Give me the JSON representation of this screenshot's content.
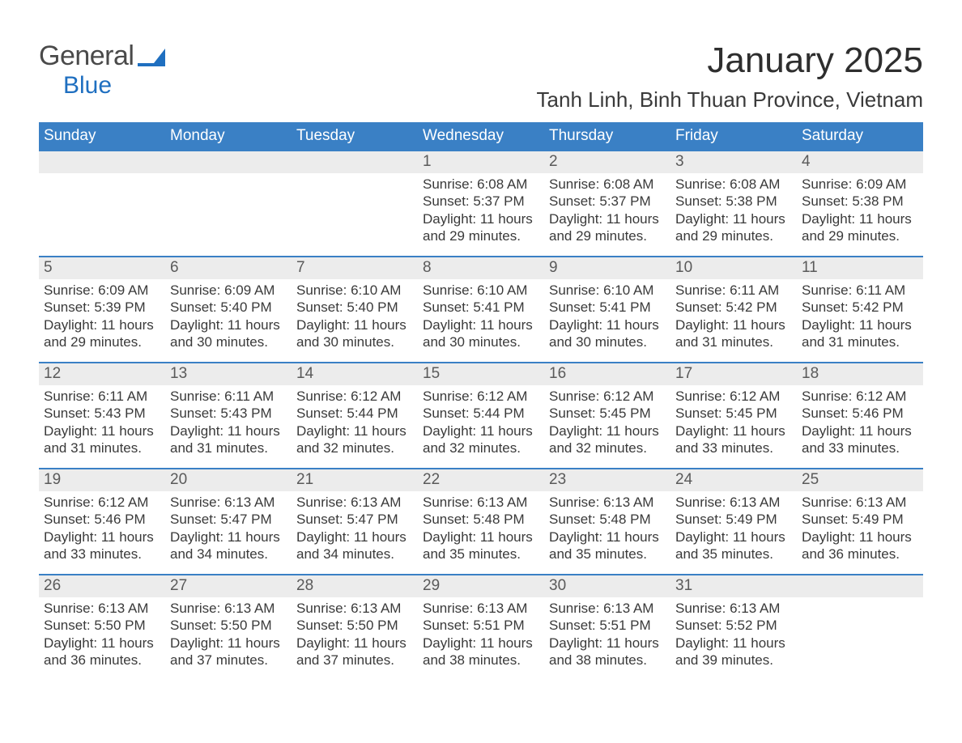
{
  "logo": {
    "text_general": "General",
    "text_blue": "Blue",
    "accent_color": "#1f6fc0"
  },
  "title": "January 2025",
  "location": "Tanh Linh, Binh Thuan Province, Vietnam",
  "colors": {
    "header_bg": "#3a80c5",
    "header_text": "#ffffff",
    "daynum_bg": "#ececec",
    "week_border": "#3a80c5",
    "body_text": "#3a3a3a"
  },
  "calendar": {
    "type": "table",
    "weekdays": [
      "Sunday",
      "Monday",
      "Tuesday",
      "Wednesday",
      "Thursday",
      "Friday",
      "Saturday"
    ],
    "start_weekday_index": 3,
    "days": [
      {
        "n": 1,
        "sunrise": "6:08 AM",
        "sunset": "5:37 PM",
        "daylight": "11 hours and 29 minutes."
      },
      {
        "n": 2,
        "sunrise": "6:08 AM",
        "sunset": "5:37 PM",
        "daylight": "11 hours and 29 minutes."
      },
      {
        "n": 3,
        "sunrise": "6:08 AM",
        "sunset": "5:38 PM",
        "daylight": "11 hours and 29 minutes."
      },
      {
        "n": 4,
        "sunrise": "6:09 AM",
        "sunset": "5:38 PM",
        "daylight": "11 hours and 29 minutes."
      },
      {
        "n": 5,
        "sunrise": "6:09 AM",
        "sunset": "5:39 PM",
        "daylight": "11 hours and 29 minutes."
      },
      {
        "n": 6,
        "sunrise": "6:09 AM",
        "sunset": "5:40 PM",
        "daylight": "11 hours and 30 minutes."
      },
      {
        "n": 7,
        "sunrise": "6:10 AM",
        "sunset": "5:40 PM",
        "daylight": "11 hours and 30 minutes."
      },
      {
        "n": 8,
        "sunrise": "6:10 AM",
        "sunset": "5:41 PM",
        "daylight": "11 hours and 30 minutes."
      },
      {
        "n": 9,
        "sunrise": "6:10 AM",
        "sunset": "5:41 PM",
        "daylight": "11 hours and 30 minutes."
      },
      {
        "n": 10,
        "sunrise": "6:11 AM",
        "sunset": "5:42 PM",
        "daylight": "11 hours and 31 minutes."
      },
      {
        "n": 11,
        "sunrise": "6:11 AM",
        "sunset": "5:42 PM",
        "daylight": "11 hours and 31 minutes."
      },
      {
        "n": 12,
        "sunrise": "6:11 AM",
        "sunset": "5:43 PM",
        "daylight": "11 hours and 31 minutes."
      },
      {
        "n": 13,
        "sunrise": "6:11 AM",
        "sunset": "5:43 PM",
        "daylight": "11 hours and 31 minutes."
      },
      {
        "n": 14,
        "sunrise": "6:12 AM",
        "sunset": "5:44 PM",
        "daylight": "11 hours and 32 minutes."
      },
      {
        "n": 15,
        "sunrise": "6:12 AM",
        "sunset": "5:44 PM",
        "daylight": "11 hours and 32 minutes."
      },
      {
        "n": 16,
        "sunrise": "6:12 AM",
        "sunset": "5:45 PM",
        "daylight": "11 hours and 32 minutes."
      },
      {
        "n": 17,
        "sunrise": "6:12 AM",
        "sunset": "5:45 PM",
        "daylight": "11 hours and 33 minutes."
      },
      {
        "n": 18,
        "sunrise": "6:12 AM",
        "sunset": "5:46 PM",
        "daylight": "11 hours and 33 minutes."
      },
      {
        "n": 19,
        "sunrise": "6:12 AM",
        "sunset": "5:46 PM",
        "daylight": "11 hours and 33 minutes."
      },
      {
        "n": 20,
        "sunrise": "6:13 AM",
        "sunset": "5:47 PM",
        "daylight": "11 hours and 34 minutes."
      },
      {
        "n": 21,
        "sunrise": "6:13 AM",
        "sunset": "5:47 PM",
        "daylight": "11 hours and 34 minutes."
      },
      {
        "n": 22,
        "sunrise": "6:13 AM",
        "sunset": "5:48 PM",
        "daylight": "11 hours and 35 minutes."
      },
      {
        "n": 23,
        "sunrise": "6:13 AM",
        "sunset": "5:48 PM",
        "daylight": "11 hours and 35 minutes."
      },
      {
        "n": 24,
        "sunrise": "6:13 AM",
        "sunset": "5:49 PM",
        "daylight": "11 hours and 35 minutes."
      },
      {
        "n": 25,
        "sunrise": "6:13 AM",
        "sunset": "5:49 PM",
        "daylight": "11 hours and 36 minutes."
      },
      {
        "n": 26,
        "sunrise": "6:13 AM",
        "sunset": "5:50 PM",
        "daylight": "11 hours and 36 minutes."
      },
      {
        "n": 27,
        "sunrise": "6:13 AM",
        "sunset": "5:50 PM",
        "daylight": "11 hours and 37 minutes."
      },
      {
        "n": 28,
        "sunrise": "6:13 AM",
        "sunset": "5:50 PM",
        "daylight": "11 hours and 37 minutes."
      },
      {
        "n": 29,
        "sunrise": "6:13 AM",
        "sunset": "5:51 PM",
        "daylight": "11 hours and 38 minutes."
      },
      {
        "n": 30,
        "sunrise": "6:13 AM",
        "sunset": "5:51 PM",
        "daylight": "11 hours and 38 minutes."
      },
      {
        "n": 31,
        "sunrise": "6:13 AM",
        "sunset": "5:52 PM",
        "daylight": "11 hours and 39 minutes."
      }
    ],
    "labels": {
      "sunrise": "Sunrise:",
      "sunset": "Sunset:",
      "daylight": "Daylight:"
    }
  }
}
